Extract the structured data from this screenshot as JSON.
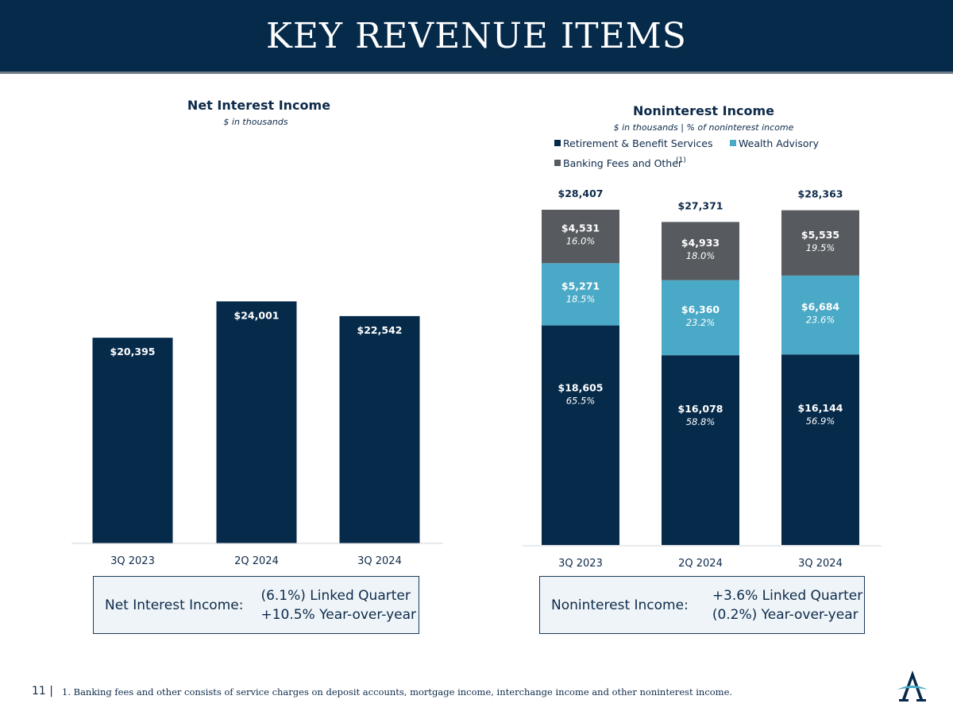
{
  "header": {
    "title": "KEY REVENUE ITEMS"
  },
  "colors": {
    "navy": "#062a4a",
    "teal": "#4aa9c7",
    "gray": "#575b5f"
  },
  "chart_data": [
    {
      "type": "bar",
      "title": "Net Interest Income",
      "subtitle": "$ in thousands",
      "categories": [
        "3Q 2023",
        "2Q 2024",
        "3Q 2024"
      ],
      "values": [
        20395,
        24001,
        22542
      ],
      "data_labels": [
        "$20,395",
        "$24,001",
        "$22,542"
      ],
      "ylim": [
        0,
        26000
      ],
      "grid": false
    },
    {
      "type": "bar",
      "stacked": true,
      "title": "Noninterest Income",
      "subtitle": "$ in thousands | % of noninterest income",
      "categories": [
        "3Q 2023",
        "2Q 2024",
        "3Q 2024"
      ],
      "legend_position": "top",
      "footnote_marker": "(1)",
      "series": [
        {
          "name": "Retirement & Benefit Services",
          "values": [
            18605,
            16078,
            16144
          ],
          "labels": [
            "$18,605",
            "$16,078",
            "$16,144"
          ],
          "pct_labels": [
            "65.5%",
            "58.8%",
            "56.9%"
          ]
        },
        {
          "name": "Wealth Advisory",
          "values": [
            5271,
            6360,
            6684
          ],
          "labels": [
            "$5,271",
            "$6,360",
            "$6,684"
          ],
          "pct_labels": [
            "18.5%",
            "23.2%",
            "23.6%"
          ]
        },
        {
          "name": "Banking Fees and Other",
          "values": [
            4531,
            4933,
            5535
          ],
          "labels": [
            "$4,531",
            "$4,933",
            "$5,535"
          ],
          "pct_labels": [
            "16.0%",
            "18.0%",
            "19.5%"
          ]
        }
      ],
      "totals": [
        28407,
        27371,
        28363
      ],
      "total_labels": [
        "$28,407",
        "$27,371",
        "$28,363"
      ],
      "ylim": [
        0,
        28407
      ],
      "grid": false
    }
  ],
  "summary_boxes": {
    "nii": {
      "label": "Net Interest Income:",
      "line1": "(6.1%) Linked Quarter",
      "line2": "+10.5% Year-over-year"
    },
    "nonii": {
      "label": "Noninterest Income:",
      "line1": "+3.6% Linked Quarter",
      "line2": "(0.2%) Year-over-year"
    }
  },
  "footer": {
    "page_number": "11 |",
    "note": "1. Banking fees and other consists of service charges on deposit accounts, mortgage income, interchange income and other noninterest income."
  },
  "logo": {
    "icon": "company-logo-icon"
  }
}
